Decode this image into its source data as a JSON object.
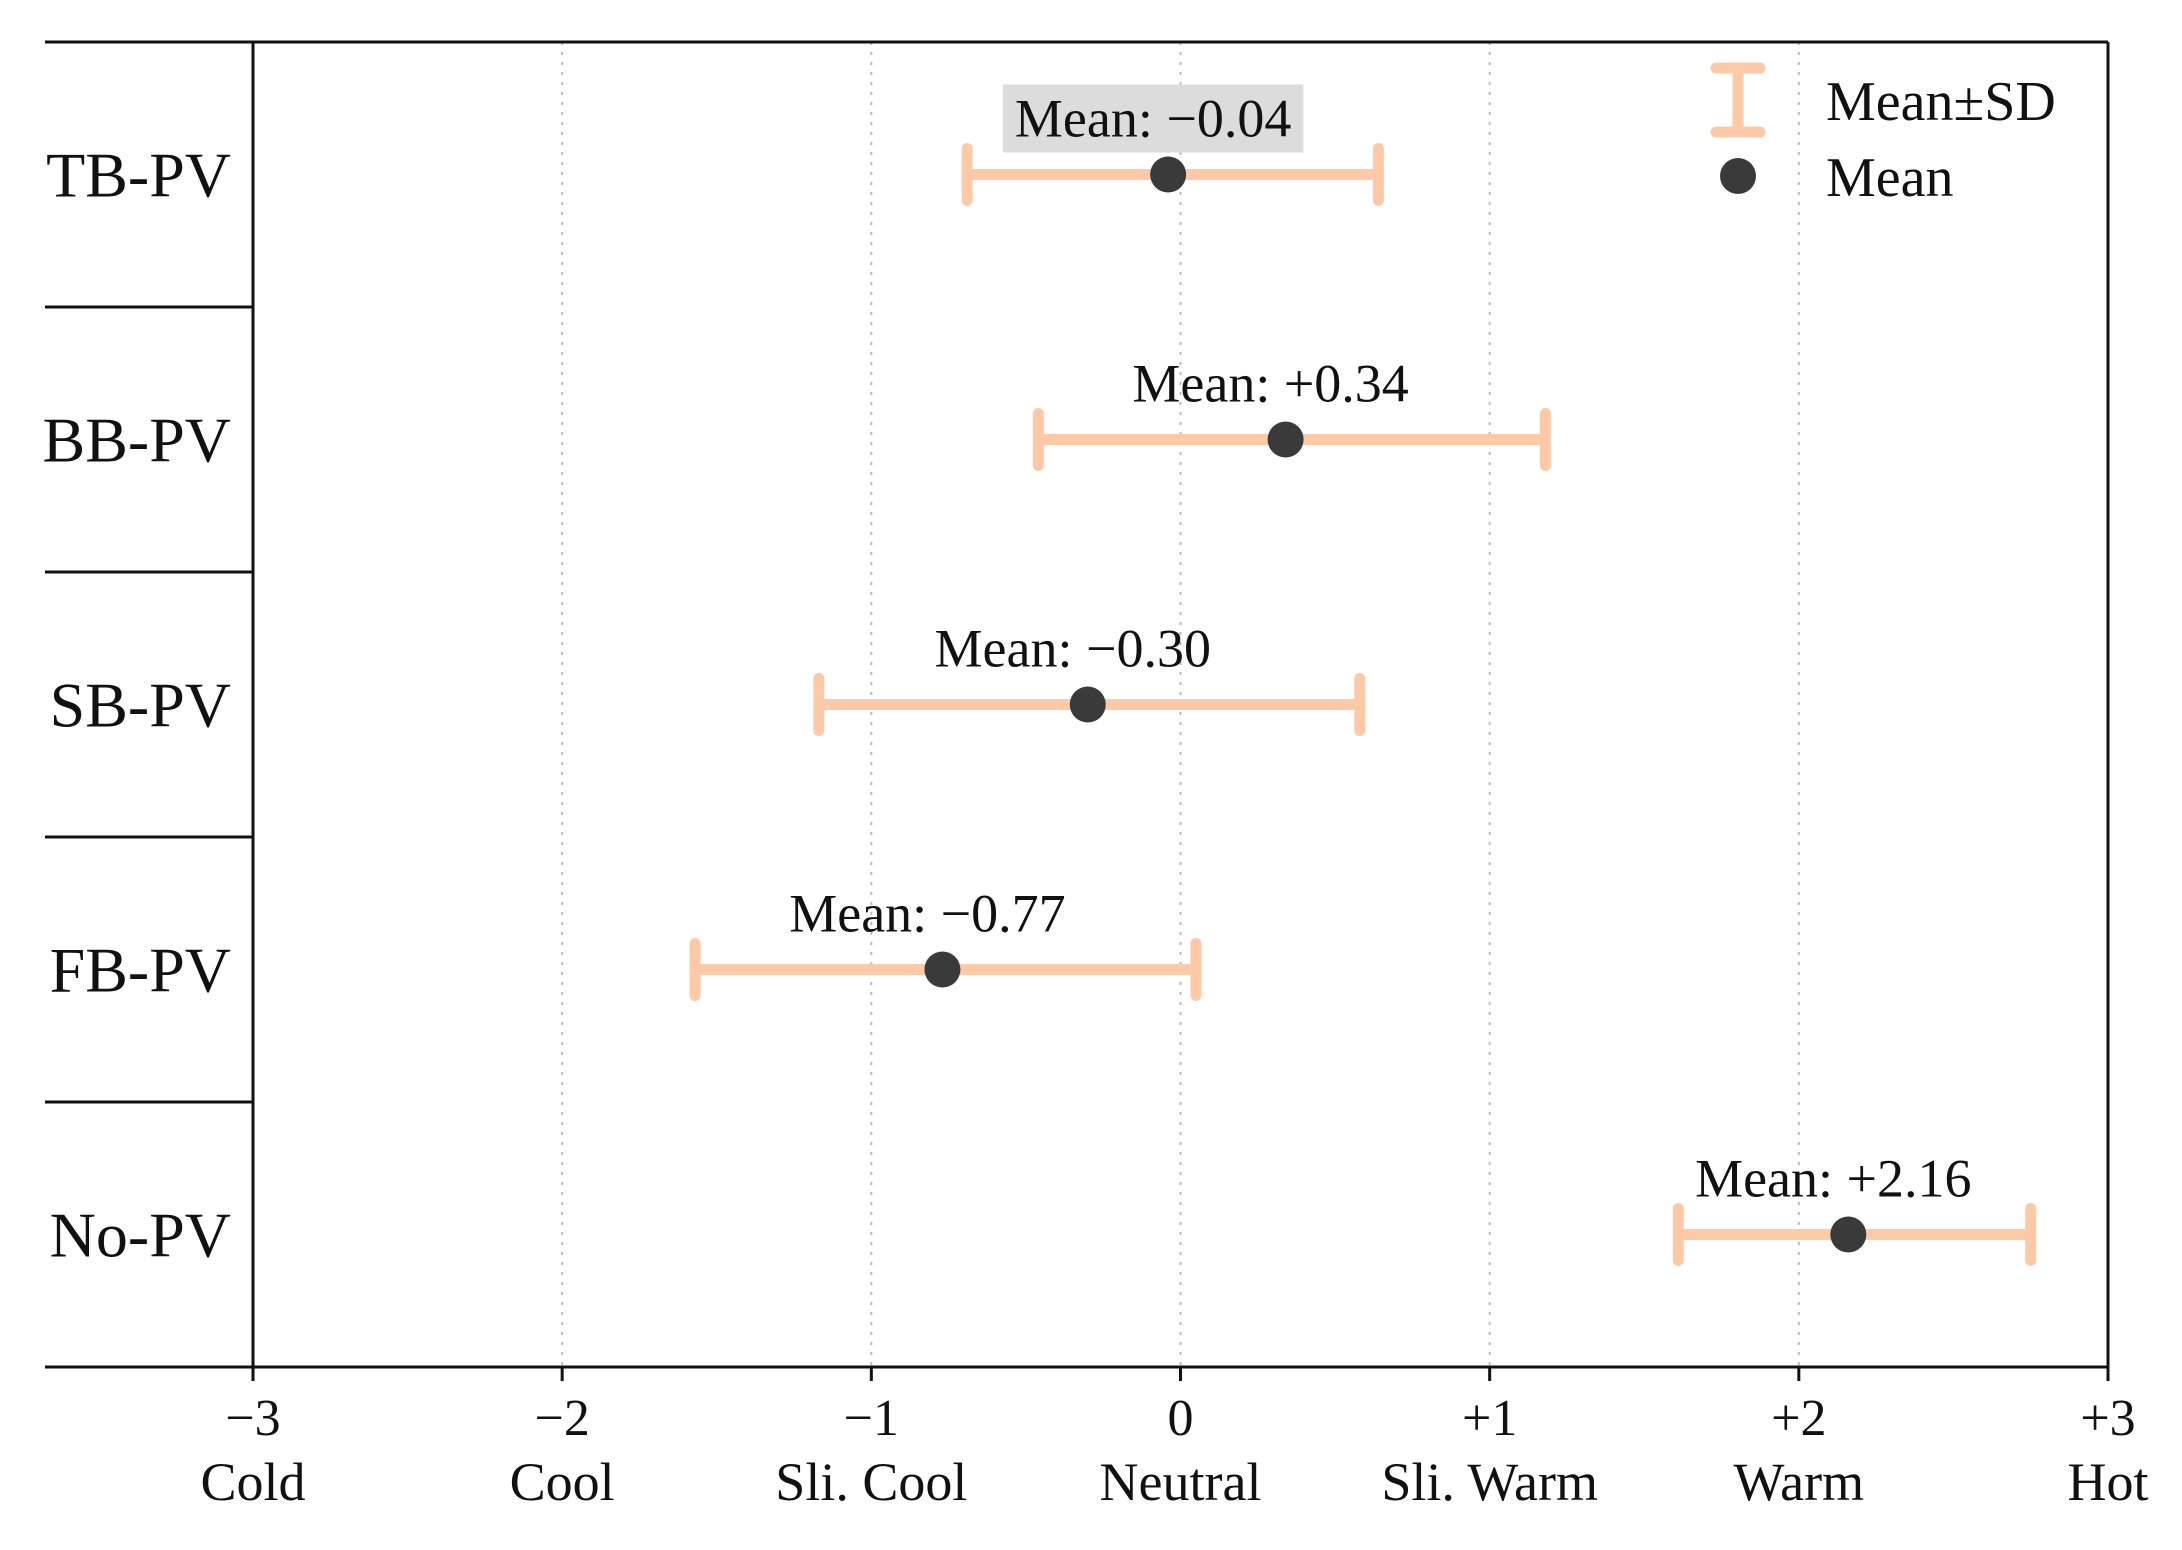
{
  "chart_data": {
    "type": "scatter",
    "orientation": "horizontal",
    "categories": [
      "TB-PV",
      "BB-PV",
      "SB-PV",
      "FB-PV",
      "No-PV"
    ],
    "mean": [
      -0.04,
      0.34,
      -0.3,
      -0.77,
      2.16
    ],
    "sd_low": [
      -0.69,
      -0.46,
      -1.17,
      -1.57,
      1.61
    ],
    "sd_high": [
      0.64,
      1.18,
      0.58,
      0.05,
      2.75
    ],
    "mean_labels": [
      "Mean: −0.04",
      "Mean: +0.34",
      "Mean: −0.30",
      "Mean: −0.77",
      "Mean: +2.16"
    ],
    "highlighted_label_index": 0,
    "xlim": [
      -3,
      3
    ],
    "x_ticks": [
      -3,
      -2,
      -1,
      0,
      1,
      2,
      3
    ],
    "x_tick_numbers": [
      "−3",
      "−2",
      "−1",
      "0",
      "+1",
      "+2",
      "+3"
    ],
    "x_tick_words": [
      "Cold",
      "Cool",
      "Sli. Cool",
      "Neutral",
      "Sli. Warm",
      "Warm",
      "Hot"
    ],
    "grid": "vertical dotted",
    "legend": {
      "position": "top-right",
      "entries": [
        {
          "label": "Mean±SD",
          "marker": "errorbar"
        },
        {
          "label": "Mean",
          "marker": "dot"
        }
      ]
    },
    "colors": {
      "errorbar": "#fdc9a6",
      "mean_dot": "#3a3a3a",
      "highlight_box": "#dcdcdc",
      "axis": "#111111",
      "grid": "#bbbbbb"
    }
  }
}
